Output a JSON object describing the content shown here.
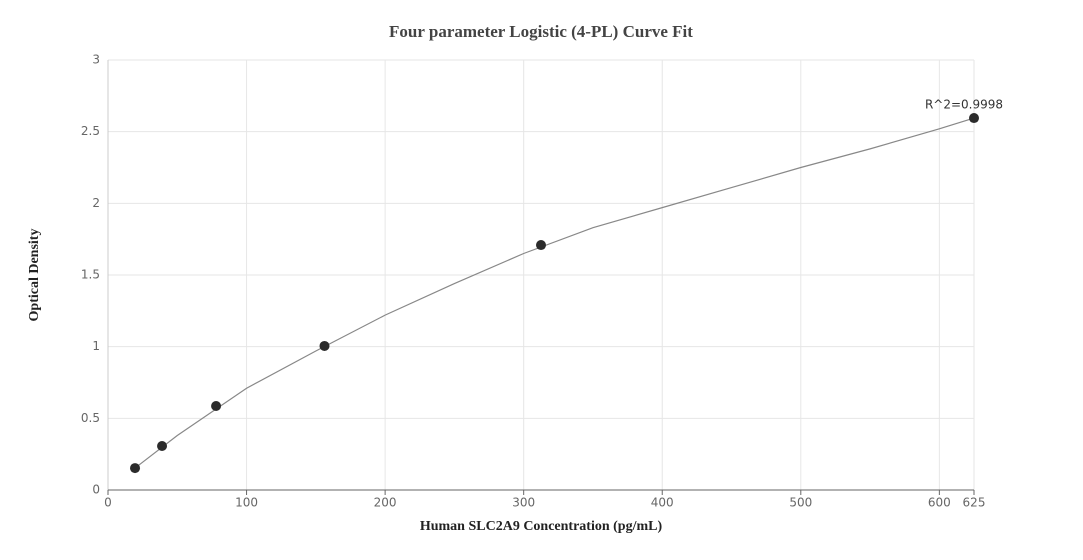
{
  "chart_data": {
    "type": "scatter",
    "title": "Four parameter Logistic (4-PL) Curve Fit",
    "x_label": "Human SLC2A9 Concentration (pg/mL)",
    "y_label": "Optical Density",
    "annotation": "R^2=0.9998",
    "x": [
      19.5,
      39,
      78,
      156.25,
      312.5,
      625
    ],
    "values": [
      0.153,
      0.307,
      0.586,
      1.005,
      1.709,
      2.595
    ],
    "color": "#2b2b2b",
    "fit_curve": {
      "color": "#888888",
      "x": [
        19.5,
        50,
        100,
        150,
        200,
        250,
        300,
        350,
        400,
        450,
        500,
        550,
        600,
        625
      ],
      "values": [
        0.153,
        0.38,
        0.71,
        0.97,
        1.22,
        1.44,
        1.65,
        1.83,
        1.97,
        2.11,
        2.25,
        2.38,
        2.52,
        2.595
      ]
    },
    "xlim": [
      0,
      625
    ],
    "xticks": [
      0,
      100,
      200,
      300,
      400,
      500,
      600,
      625
    ],
    "ylim": [
      0,
      3
    ],
    "yticks": [
      0,
      0.5,
      1,
      1.5,
      2,
      2.5,
      3
    ],
    "grid": true
  }
}
